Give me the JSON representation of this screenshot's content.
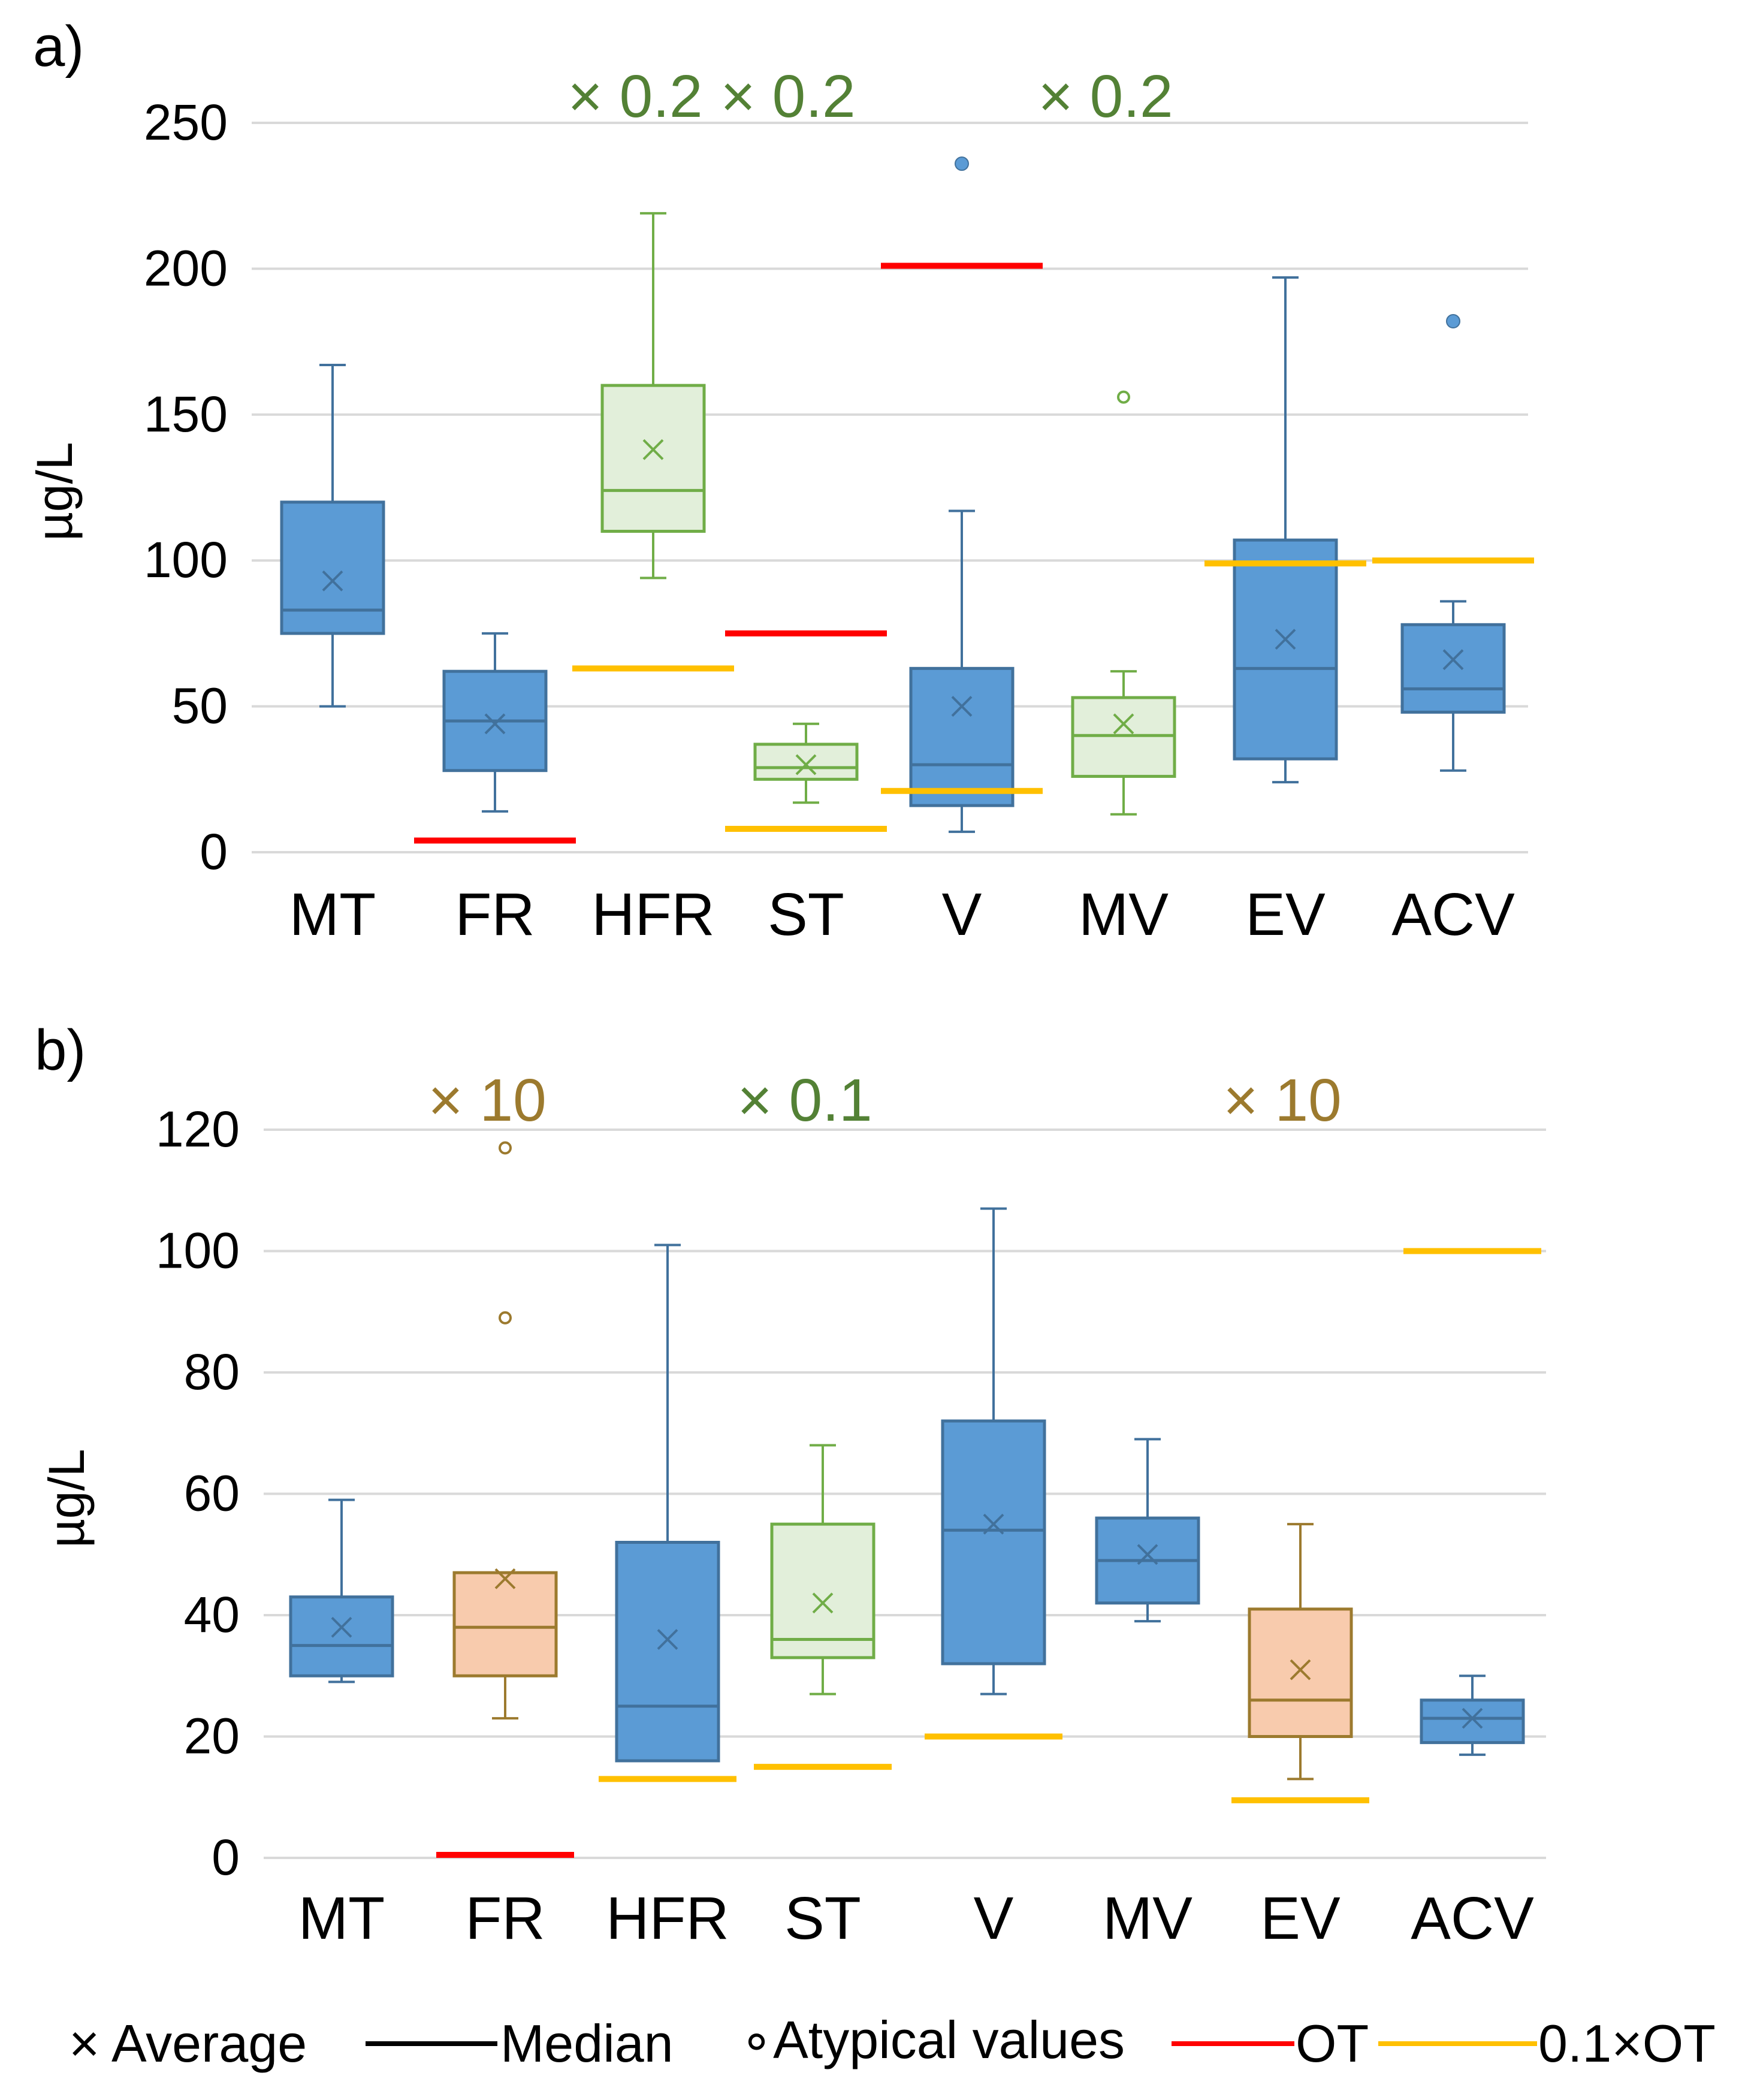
{
  "colors": {
    "blue_fill": "#5B9BD5",
    "blue_stroke": "#41719C",
    "green_fill": "#E2EFDA",
    "green_stroke": "#70AD47",
    "orange_fill": "#F8CBAD",
    "orange_stroke": "#9C7A2E",
    "ot_line": "#FF0000",
    "ot01_line": "#FFC000",
    "grid": "#D9D9D9",
    "axis_text": "#000000",
    "green_text": "#538135",
    "brown_text": "#9C7A2E"
  },
  "legend": {
    "average": "× Average",
    "median": "Median",
    "atypical": "∘Atypical values",
    "ot": "OT",
    "ot01": "0.1×OT"
  },
  "chart_data": [
    {
      "panel_label": "a)",
      "type": "boxplot",
      "ylabel": "µg/L",
      "ylim": [
        0,
        250
      ],
      "yticks": [
        0,
        50,
        100,
        150,
        200,
        250
      ],
      "grid": true,
      "categories": [
        "MT",
        "FR",
        "HFR",
        "ST",
        "V",
        "MV",
        "EV",
        "ACV"
      ],
      "boxes": [
        {
          "cat": "MT",
          "color": "blue",
          "min": 50,
          "q1": 75,
          "median": 83,
          "q3": 120,
          "max": 167,
          "mean": 93,
          "outliers": []
        },
        {
          "cat": "FR",
          "color": "blue",
          "min": 14,
          "q1": 28,
          "median": 45,
          "q3": 62,
          "max": 75,
          "mean": 44,
          "outliers": []
        },
        {
          "cat": "HFR",
          "color": "green",
          "min": 94,
          "q1": 110,
          "median": 124,
          "q3": 160,
          "max": 219,
          "mean": 138,
          "outliers": []
        },
        {
          "cat": "ST",
          "color": "green",
          "min": 17,
          "q1": 25,
          "median": 29,
          "q3": 37,
          "max": 44,
          "mean": 30,
          "outliers": []
        },
        {
          "cat": "V",
          "color": "blue",
          "min": 7,
          "q1": 16,
          "median": 30,
          "q3": 63,
          "max": 117,
          "mean": 50,
          "outliers": [
            236
          ]
        },
        {
          "cat": "MV",
          "color": "green",
          "min": 13,
          "q1": 26,
          "median": 40,
          "q3": 53,
          "max": 62,
          "mean": 44,
          "outliers": [
            156
          ]
        },
        {
          "cat": "EV",
          "color": "blue",
          "min": 24,
          "q1": 32,
          "median": 63,
          "q3": 107,
          "max": 197,
          "mean": 73,
          "outliers": []
        },
        {
          "cat": "ACV",
          "color": "blue",
          "min": 28,
          "q1": 48,
          "median": 56,
          "q3": 78,
          "max": 86,
          "mean": 66,
          "outliers": [
            182
          ]
        }
      ],
      "threshold_lines": [
        {
          "cat": "FR",
          "kind": "OT",
          "value": 4
        },
        {
          "cat": "HFR",
          "kind": "0.1×OT",
          "value": 63
        },
        {
          "cat": "ST",
          "kind": "OT",
          "value": 75
        },
        {
          "cat": "ST",
          "kind": "0.1×OT",
          "value": 8
        },
        {
          "cat": "V",
          "kind": "OT",
          "value": 201
        },
        {
          "cat": "V",
          "kind": "0.1×OT",
          "value": 21
        },
        {
          "cat": "EV",
          "kind": "0.1×OT",
          "value": 99
        },
        {
          "cat": "ACV",
          "kind": "0.1×OT",
          "value": 100
        }
      ],
      "scale_annotations": [
        {
          "cat": "HFR",
          "text": "× 0.2",
          "color": "green"
        },
        {
          "cat": "ST",
          "text": "× 0.2",
          "color": "green"
        },
        {
          "cat": "MV",
          "text": "× 0.2",
          "color": "green"
        }
      ]
    },
    {
      "panel_label": "b)",
      "type": "boxplot",
      "ylabel": "µg/L",
      "ylim": [
        0,
        120
      ],
      "yticks": [
        0,
        20,
        40,
        60,
        80,
        100,
        120
      ],
      "grid": true,
      "categories": [
        "MT",
        "FR",
        "HFR",
        "ST",
        "V",
        "MV",
        "EV",
        "ACV"
      ],
      "boxes": [
        {
          "cat": "MT",
          "color": "blue",
          "min": 29,
          "q1": 30,
          "median": 35,
          "q3": 43,
          "max": 59,
          "mean": 38,
          "outliers": []
        },
        {
          "cat": "FR",
          "color": "orange",
          "min": 23,
          "q1": 30,
          "median": 38,
          "q3": 47,
          "max": 47,
          "mean": 46,
          "outliers": [
            89,
            117
          ]
        },
        {
          "cat": "HFR",
          "color": "blue",
          "min": 16,
          "q1": 16,
          "median": 25,
          "q3": 52,
          "max": 101,
          "mean": 36,
          "outliers": []
        },
        {
          "cat": "ST",
          "color": "green",
          "min": 27,
          "q1": 33,
          "median": 36,
          "q3": 55,
          "max": 68,
          "mean": 42,
          "outliers": []
        },
        {
          "cat": "V",
          "color": "blue",
          "min": 27,
          "q1": 32,
          "median": 54,
          "q3": 72,
          "max": 107,
          "mean": 55,
          "outliers": []
        },
        {
          "cat": "MV",
          "color": "blue",
          "min": 39,
          "q1": 42,
          "median": 49,
          "q3": 56,
          "max": 69,
          "mean": 50,
          "outliers": []
        },
        {
          "cat": "EV",
          "color": "orange",
          "min": 13,
          "q1": 20,
          "median": 26,
          "q3": 41,
          "max": 55,
          "mean": 31,
          "outliers": []
        },
        {
          "cat": "ACV",
          "color": "blue",
          "min": 17,
          "q1": 19,
          "median": 23,
          "q3": 26,
          "max": 30,
          "mean": 23,
          "outliers": []
        }
      ],
      "threshold_lines": [
        {
          "cat": "FR",
          "kind": "OT",
          "value": 0.5
        },
        {
          "cat": "HFR",
          "kind": "0.1×OT",
          "value": 13
        },
        {
          "cat": "ST",
          "kind": "0.1×OT",
          "value": 15
        },
        {
          "cat": "V",
          "kind": "0.1×OT",
          "value": 20
        },
        {
          "cat": "EV",
          "kind": "0.1×OT",
          "value": 9.5
        },
        {
          "cat": "ACV",
          "kind": "0.1×OT",
          "value": 100
        }
      ],
      "scale_annotations": [
        {
          "cat": "FR",
          "text": "× 10",
          "color": "brown"
        },
        {
          "cat": "ST",
          "text": "× 0.1",
          "color": "green"
        },
        {
          "cat": "EV",
          "text": "× 10",
          "color": "brown"
        }
      ]
    }
  ]
}
